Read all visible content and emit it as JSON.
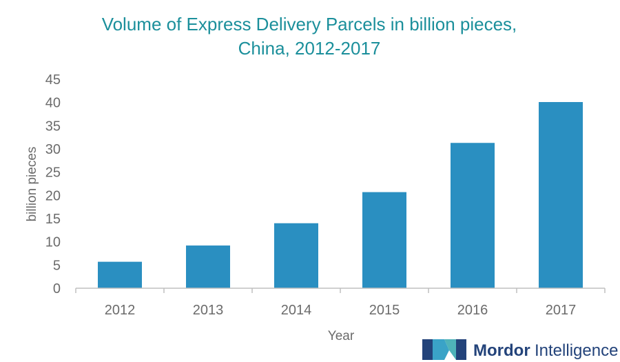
{
  "chart_data": {
    "type": "bar",
    "title_line1": "Volume of Express Delivery Parcels in billion pieces,",
    "title_line2": "China, 2012-2017",
    "xlabel": "Year",
    "ylabel": "billion pieces",
    "categories": [
      "2012",
      "2013",
      "2014",
      "2015",
      "2016",
      "2017"
    ],
    "values": [
      5.7,
      9.2,
      14.0,
      20.7,
      31.3,
      40.1
    ],
    "ylim": [
      0,
      45
    ],
    "yticks": [
      0,
      5,
      10,
      15,
      20,
      25,
      30,
      35,
      40,
      45
    ],
    "grid": false,
    "legend": "none",
    "bar_color": "#2a8fc1",
    "axis_color": "#bfbfbf"
  },
  "branding": {
    "logo_word1": "Mordor",
    "logo_word2": "Intelligence",
    "logo_color_dark": "#23437a",
    "logo_color_light": "#3aa3c7",
    "logo_color_teal": "#4fb3b9"
  }
}
